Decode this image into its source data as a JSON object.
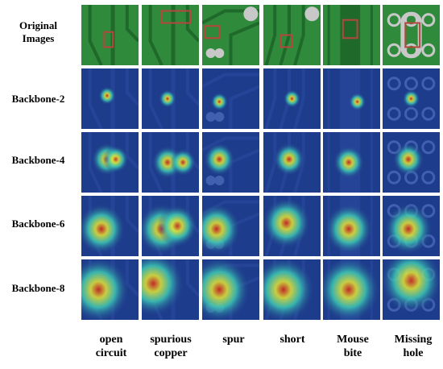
{
  "rows": [
    {
      "label": "Original\nImages",
      "kind": "original"
    },
    {
      "label": "Backbone-2",
      "kind": "heat",
      "spread": 0.25
    },
    {
      "label": "Backbone-4",
      "kind": "heat",
      "spread": 0.45
    },
    {
      "label": "Backbone-6",
      "kind": "heat",
      "spread": 0.7
    },
    {
      "label": "Backbone-8",
      "kind": "heat",
      "spread": 0.9
    }
  ],
  "columns": [
    {
      "label": "open\ncircuit"
    },
    {
      "label": "spurious\ncopper"
    },
    {
      "label": "spur"
    },
    {
      "label": "short"
    },
    {
      "label": "Mouse\nbite"
    },
    {
      "label": "Missing\nhole"
    }
  ],
  "colors": {
    "pcb_green": "#2f8a3c",
    "pcb_dark": "#1f6a2a",
    "pad_silver": "#c8c8c8",
    "heat_low": "#1e3c8c",
    "heat_mid": "#3cc8b4",
    "heat_high": "#e6e632",
    "heat_peak": "#dc2814",
    "defect_box": "#b4463c"
  }
}
